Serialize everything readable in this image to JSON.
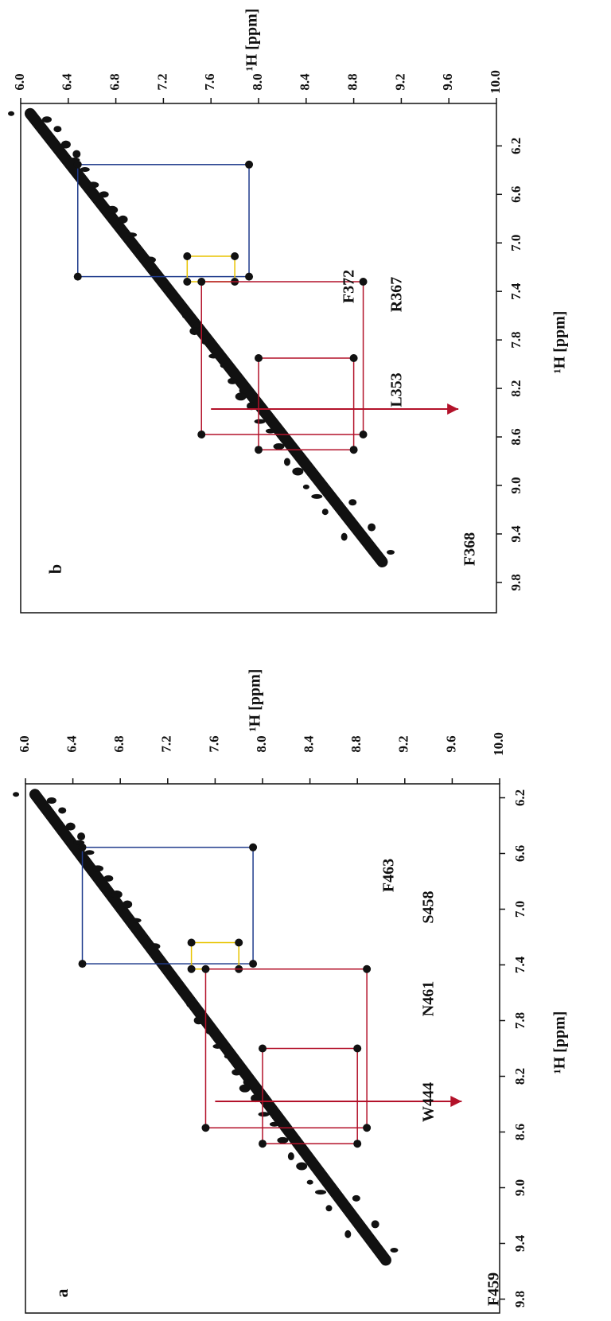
{
  "panels": [
    {
      "label": "b",
      "x_axis": {
        "label": "¹H [ppm]",
        "lim": [
          5.85,
          10.05
        ],
        "ticks": [
          6.2,
          6.6,
          {
            "value": 7.0,
            "label": "7.0"
          },
          7.4,
          7.8,
          8.2,
          8.6,
          {
            "value": 9.0,
            "label": "9.0"
          },
          9.4,
          9.8
        ]
      },
      "y_axis": {
        "label": "¹H [ppm]",
        "lim": [
          6.0,
          10.0
        ],
        "ticks": [
          {
            "value": 6.0,
            "label": "6.0"
          },
          6.4,
          6.8,
          7.2,
          7.6,
          {
            "value": 8.0,
            "label": "8.0"
          },
          8.4,
          8.8,
          9.2,
          9.6,
          {
            "value": 10.0,
            "label": "10.0"
          }
        ]
      },
      "annotations": [
        {
          "text": "F368",
          "color": "#1f3b8c"
        },
        {
          "text": "L353",
          "color": "#b3122a"
        },
        {
          "text": "R367",
          "color": "#111111"
        },
        {
          "text": "F372",
          "color": "#e8c400"
        }
      ]
    },
    {
      "label": "a",
      "x_axis": {
        "label": "¹H [ppm]",
        "lim": [
          6.1,
          9.9
        ],
        "ticks": [
          6.2,
          6.6,
          {
            "value": 7.0,
            "label": "7.0"
          },
          7.4,
          7.8,
          8.2,
          8.6,
          {
            "value": 9.0,
            "label": "9.0"
          },
          9.4,
          9.8
        ]
      },
      "y_axis": {
        "label": "¹H [ppm]",
        "lim": [
          6.0,
          10.0
        ],
        "ticks": [
          {
            "value": 6.0,
            "label": "6.0"
          },
          6.4,
          6.8,
          7.2,
          7.6,
          {
            "value": 8.0,
            "label": "8.0"
          },
          8.4,
          8.8,
          9.2,
          9.6,
          {
            "value": 10.0,
            "label": "10.0"
          }
        ]
      },
      "annotations": [
        {
          "text": "W444",
          "color": "#b3122a"
        },
        {
          "text": "N461",
          "color": "#111111"
        },
        {
          "text": "S458",
          "color": "#111111"
        },
        {
          "text": "F463",
          "color": "#e8c400"
        },
        {
          "text": "F459",
          "color": "#1f3b8c"
        }
      ]
    }
  ]
}
